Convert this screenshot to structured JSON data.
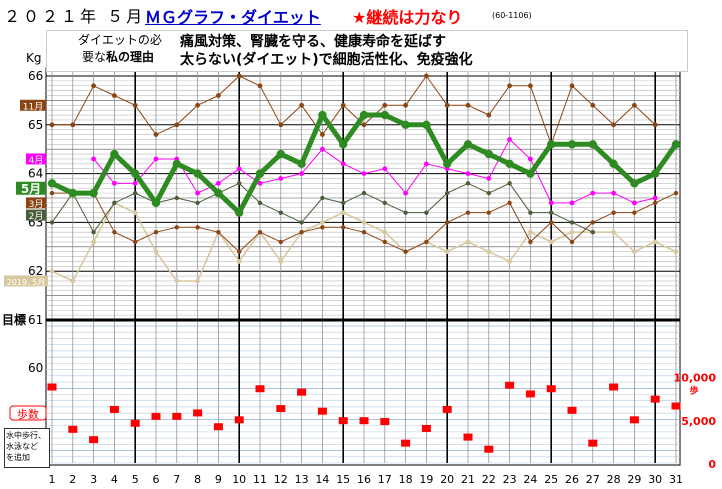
{
  "header": {
    "year_month": "２０２１年 ５月",
    "graph_title": "ＭＧグラフ・ダイエット",
    "slogan": "★継続は力なり",
    "record_code": "(60-1106)"
  },
  "reason": {
    "label_part1": "ダイエットの必",
    "label_part2a": "要な",
    "label_part2b": "私の理由",
    "line1": "痛風対策、腎臓を守る、健康寿命を延ばす",
    "line2": "太らない(ダイエット)で細胞活性化、免疫強化"
  },
  "aside_note": "水中歩行、\n水泳など\nを追加",
  "colors": {
    "may": "#2e8b22",
    "april": "#ff00ff",
    "march": "#8b4513",
    "february": "#4a5d3a",
    "november": "#8b4513",
    "may2019": "#d8c8a0",
    "steps": "#ff0000",
    "target_line": "#000000"
  },
  "chart_data": [
    {
      "type": "line",
      "title": "",
      "ylabel": "Kg",
      "ylim": [
        61,
        66
      ],
      "yticks": [
        "66",
        "65",
        "64",
        "63",
        "62"
      ],
      "target_label": "目標",
      "target_value": "61",
      "x": [
        1,
        2,
        3,
        4,
        5,
        6,
        7,
        8,
        9,
        10,
        11,
        12,
        13,
        14,
        15,
        16,
        17,
        18,
        19,
        20,
        21,
        22,
        23,
        24,
        25,
        26,
        27,
        28,
        29,
        30,
        31
      ],
      "x_tick_labels": [
        "1",
        "2",
        "3",
        "4",
        "5",
        "6",
        "7",
        "8",
        "9",
        "10",
        "11",
        "12",
        "13",
        "14",
        "15",
        "16",
        "17",
        "18",
        "19",
        "20",
        "21",
        "22",
        "23",
        "24",
        "25",
        "26",
        "27",
        "28",
        "29",
        "30",
        "31"
      ],
      "series": [
        {
          "name": "11月",
          "label": "11月",
          "label_style": "brown-box",
          "values": [
            65.0,
            65.0,
            65.8,
            65.6,
            65.4,
            64.8,
            65.0,
            65.4,
            65.6,
            66.0,
            65.8,
            65.0,
            65.4,
            64.8,
            65.4,
            65.0,
            65.4,
            65.4,
            66.0,
            65.4,
            65.4,
            65.2,
            65.8,
            65.8,
            64.6,
            65.8,
            65.4,
            65.0,
            65.4,
            65.0,
            null
          ]
        },
        {
          "name": "4月",
          "label": "4月",
          "label_style": "magenta-box",
          "values": [
            null,
            null,
            64.3,
            63.8,
            63.8,
            64.3,
            64.3,
            63.6,
            63.8,
            64.1,
            63.8,
            63.9,
            64.0,
            64.5,
            64.2,
            64.0,
            64.1,
            63.6,
            64.2,
            64.1,
            64.0,
            63.9,
            64.7,
            64.3,
            63.4,
            63.4,
            63.6,
            63.6,
            63.4,
            63.5,
            null
          ]
        },
        {
          "name": "5月",
          "label": "5月",
          "label_style": "green-box",
          "values": [
            63.8,
            63.6,
            63.6,
            64.4,
            64.0,
            63.4,
            64.2,
            64.0,
            63.6,
            63.2,
            64.0,
            64.4,
            64.2,
            65.2,
            64.6,
            65.2,
            65.2,
            65.0,
            65.0,
            64.2,
            64.6,
            64.4,
            64.2,
            64.0,
            64.6,
            64.6,
            64.6,
            64.2,
            63.8,
            64.0,
            64.6
          ]
        },
        {
          "name": "3月",
          "label": "3月",
          "label_style": "brown-box",
          "values": [
            63.6,
            63.6,
            63.6,
            62.8,
            62.6,
            62.8,
            62.9,
            62.9,
            62.8,
            62.4,
            62.8,
            62.6,
            62.8,
            62.9,
            62.9,
            62.8,
            62.6,
            62.4,
            62.6,
            63.0,
            63.2,
            63.2,
            63.4,
            62.6,
            63.0,
            62.6,
            63.0,
            63.2,
            63.2,
            63.4,
            63.6
          ]
        },
        {
          "name": "2月",
          "label": "2月",
          "label_style": "darkgreen-box",
          "values": [
            63.0,
            63.6,
            62.8,
            63.4,
            63.6,
            63.4,
            63.5,
            63.4,
            63.6,
            63.8,
            63.4,
            63.2,
            63.0,
            63.5,
            63.4,
            63.6,
            63.4,
            63.2,
            63.2,
            63.6,
            63.8,
            63.6,
            63.8,
            63.2,
            63.2,
            63.0,
            62.8,
            null,
            null,
            null,
            null
          ]
        },
        {
          "name": "2019. 5月",
          "label": "2019. 5月",
          "label_style": "tan-box",
          "values": [
            62.0,
            61.8,
            62.6,
            63.4,
            63.2,
            62.4,
            61.8,
            61.8,
            62.8,
            62.2,
            62.8,
            62.2,
            62.8,
            63.0,
            63.2,
            63.0,
            62.8,
            62.4,
            62.6,
            62.4,
            62.6,
            62.4,
            62.2,
            62.8,
            62.6,
            62.8,
            62.8,
            62.8,
            62.4,
            62.6,
            62.4
          ]
        }
      ]
    },
    {
      "type": "scatter",
      "title": "",
      "series_name": "歩数",
      "lower_left_label": "60",
      "ylim": [
        0,
        11000
      ],
      "yticks": [
        "10,000",
        "5,000",
        "0"
      ],
      "y_unit": "歩",
      "x": [
        1,
        2,
        3,
        4,
        5,
        6,
        7,
        8,
        9,
        10,
        11,
        12,
        13,
        14,
        15,
        16,
        17,
        18,
        19,
        20,
        21,
        22,
        23,
        24,
        25,
        26,
        27,
        28,
        29,
        30,
        31
      ],
      "values": [
        8800,
        3900,
        2700,
        6200,
        4600,
        5400,
        5400,
        5800,
        4200,
        5000,
        8600,
        6300,
        8200,
        6000,
        4900,
        4900,
        4800,
        2300,
        4000,
        6200,
        3000,
        1600,
        9000,
        8000,
        8600,
        6100,
        2300,
        8800,
        5000,
        7400,
        6600
      ]
    }
  ]
}
